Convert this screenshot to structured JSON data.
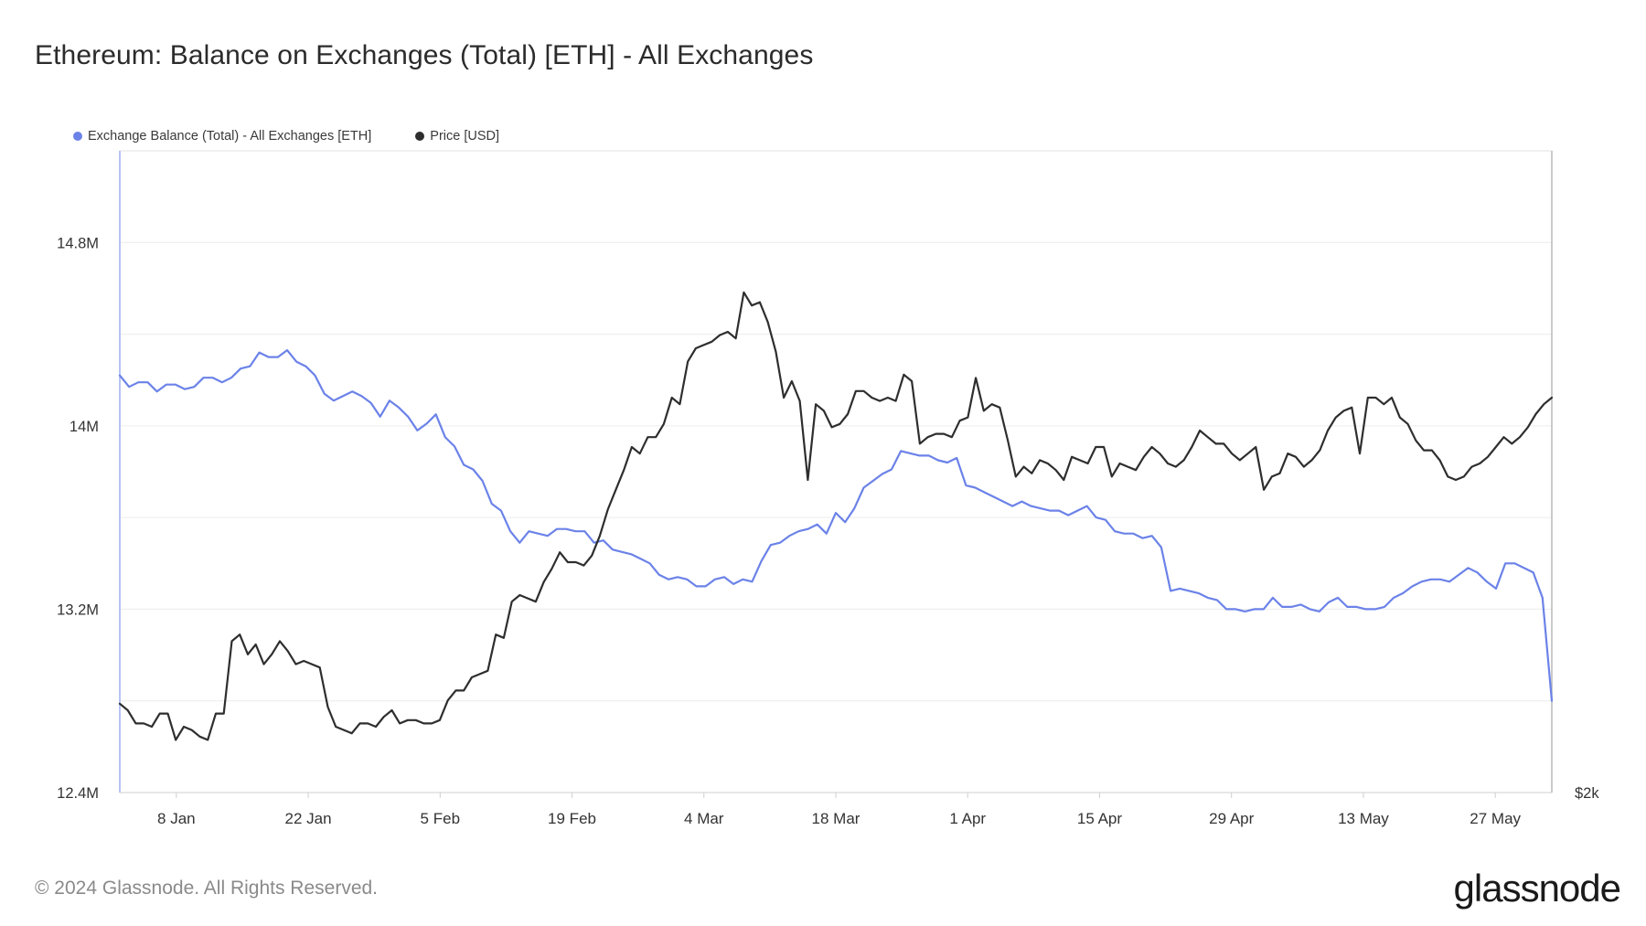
{
  "title": "Ethereum: Balance on Exchanges (Total) [ETH] - All Exchanges",
  "legend": [
    {
      "label": "Exchange Balance (Total) - All Exchanges [ETH]",
      "color": "#6b82e8"
    },
    {
      "label": "Price [USD]",
      "color": "#2e2e2e"
    }
  ],
  "footer": "© 2024 Glassnode. All Rights Reserved.",
  "logo": "glassnode",
  "chart_data": {
    "type": "line",
    "x_tick_labels": [
      "8 Jan",
      "22 Jan",
      "5 Feb",
      "19 Feb",
      "4 Mar",
      "18 Mar",
      "1 Apr",
      "15 Apr",
      "29 Apr",
      "13 May",
      "27 May"
    ],
    "y_left_tick_labels": [
      "12.4M",
      "13.2M",
      "14M",
      "14.8M"
    ],
    "y_left_range": [
      12400000,
      15200000
    ],
    "y_right_tick_labels": [
      "$2k"
    ],
    "grid": true,
    "legend_position": "top-left",
    "series": [
      {
        "name": "Exchange Balance (Total) - All Exchanges [ETH]",
        "axis": "left",
        "color": "#6b82e8",
        "values": [
          14220000,
          14170000,
          14190000,
          14190000,
          14150000,
          14180000,
          14180000,
          14160000,
          14170000,
          14210000,
          14210000,
          14190000,
          14210000,
          14250000,
          14260000,
          14320000,
          14300000,
          14300000,
          14330000,
          14280000,
          14260000,
          14220000,
          14140000,
          14110000,
          14130000,
          14150000,
          14130000,
          14100000,
          14040000,
          14110000,
          14080000,
          14040000,
          13980000,
          14010000,
          14050000,
          13950000,
          13910000,
          13830000,
          13810000,
          13760000,
          13660000,
          13630000,
          13540000,
          13490000,
          13540000,
          13530000,
          13520000,
          13550000,
          13550000,
          13540000,
          13540000,
          13490000,
          13500000,
          13460000,
          13450000,
          13440000,
          13420000,
          13400000,
          13350000,
          13330000,
          13340000,
          13330000,
          13300000,
          13300000,
          13330000,
          13340000,
          13310000,
          13330000,
          13320000,
          13410000,
          13480000,
          13490000,
          13520000,
          13540000,
          13550000,
          13570000,
          13530000,
          13620000,
          13580000,
          13640000,
          13730000,
          13760000,
          13790000,
          13810000,
          13890000,
          13880000,
          13870000,
          13870000,
          13850000,
          13840000,
          13860000,
          13740000,
          13730000,
          13710000,
          13690000,
          13670000,
          13650000,
          13670000,
          13650000,
          13640000,
          13630000,
          13630000,
          13610000,
          13630000,
          13650000,
          13600000,
          13590000,
          13540000,
          13530000,
          13530000,
          13510000,
          13520000,
          13470000,
          13280000,
          13290000,
          13280000,
          13270000,
          13250000,
          13240000,
          13200000,
          13200000,
          13190000,
          13200000,
          13200000,
          13250000,
          13210000,
          13210000,
          13220000,
          13200000,
          13190000,
          13230000,
          13250000,
          13210000,
          13210000,
          13200000,
          13200000,
          13210000,
          13250000,
          13270000,
          13300000,
          13320000,
          13330000,
          13330000,
          13320000,
          13350000,
          13380000,
          13360000,
          13320000,
          13290000,
          13400000,
          13400000,
          13380000,
          13360000,
          13250000,
          12800000
        ]
      },
      {
        "name": "Price [USD]",
        "axis": "right",
        "color": "#2e2e2e",
        "values": [
          2270,
          2250,
          2210,
          2210,
          2200,
          2240,
          2240,
          2160,
          2200,
          2190,
          2170,
          2160,
          2240,
          2240,
          2460,
          2480,
          2420,
          2450,
          2390,
          2420,
          2460,
          2430,
          2390,
          2400,
          2390,
          2380,
          2260,
          2200,
          2190,
          2180,
          2210,
          2210,
          2200,
          2230,
          2250,
          2210,
          2220,
          2220,
          2210,
          2210,
          2220,
          2280,
          2310,
          2310,
          2350,
          2360,
          2370,
          2480,
          2470,
          2580,
          2600,
          2590,
          2580,
          2640,
          2680,
          2730,
          2700,
          2700,
          2690,
          2720,
          2780,
          2860,
          2920,
          2980,
          3050,
          3030,
          3080,
          3080,
          3120,
          3200,
          3180,
          3310,
          3350,
          3360,
          3370,
          3390,
          3400,
          3380,
          3520,
          3480,
          3490,
          3430,
          3340,
          3200,
          3250,
          3190,
          2950,
          3180,
          3160,
          3110,
          3120,
          3150,
          3220,
          3220,
          3200,
          3190,
          3200,
          3190,
          3270,
          3250,
          3060,
          3080,
          3090,
          3090,
          3080,
          3130,
          3140,
          3260,
          3160,
          3180,
          3170,
          3070,
          2960,
          2990,
          2970,
          3010,
          3000,
          2980,
          2950,
          3020,
          3010,
          3000,
          3050,
          3050,
          2960,
          3000,
          2990,
          2980,
          3020,
          3050,
          3030,
          3000,
          2990,
          3010,
          3050,
          3100,
          3080,
          3060,
          3060,
          3030,
          3010,
          3030,
          3050,
          2920,
          2960,
          2970,
          3030,
          3020,
          2990,
          3010,
          3040,
          3100,
          3140,
          3160,
          3170,
          3030,
          3200,
          3200,
          3180,
          3200,
          3140,
          3120,
          3070,
          3040,
          3040,
          3010,
          2960,
          2950,
          2960,
          2990,
          3000,
          3020,
          3050,
          3080,
          3060,
          3080,
          3110,
          3150,
          3180,
          3200
        ]
      }
    ]
  }
}
